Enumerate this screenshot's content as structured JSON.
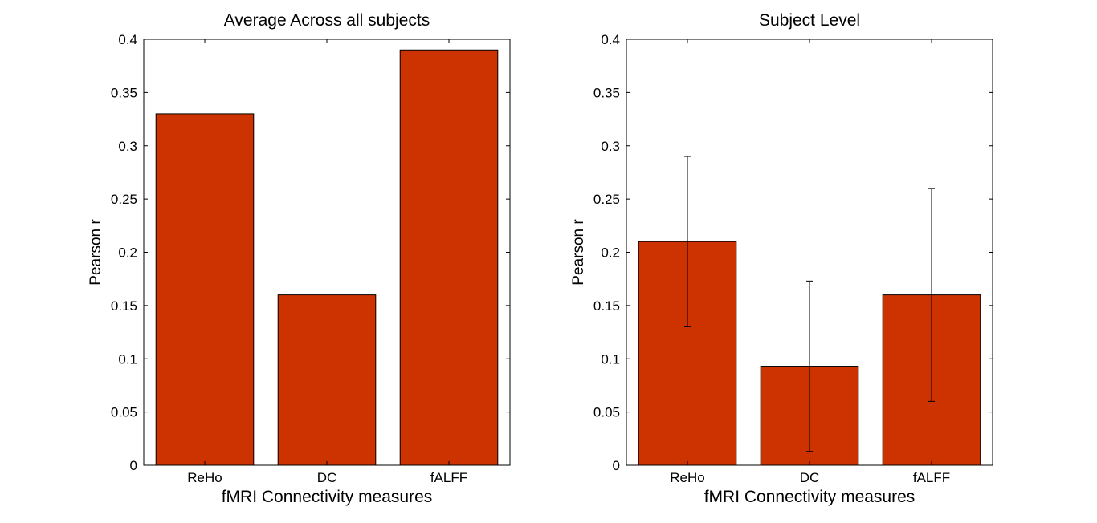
{
  "chart_data": [
    {
      "type": "bar",
      "title": "Average Across all subjects",
      "xlabel": "fMRI Connectivity measures",
      "ylabel": "Pearson r",
      "categories": [
        "ReHo",
        "DC",
        "fALFF"
      ],
      "values": [
        0.33,
        0.16,
        0.39
      ],
      "ylim": [
        0,
        0.4
      ],
      "yticks": [
        "0",
        "0.05",
        "0.1",
        "0.15",
        "0.2",
        "0.25",
        "0.3",
        "0.35",
        "0.4"
      ],
      "bar_color": "#cc3300",
      "grid": false
    },
    {
      "type": "bar",
      "title": "Subject Level",
      "xlabel": "fMRI Connectivity measures",
      "ylabel": "Pearson r",
      "categories": [
        "ReHo",
        "DC",
        "fALFF"
      ],
      "values": [
        0.21,
        0.093,
        0.16
      ],
      "error_low": [
        0.13,
        0.013,
        0.06
      ],
      "error_high": [
        0.29,
        0.173,
        0.26
      ],
      "ylim": [
        0,
        0.4
      ],
      "yticks": [
        "0",
        "0.05",
        "0.1",
        "0.15",
        "0.2",
        "0.25",
        "0.3",
        "0.35",
        "0.4"
      ],
      "bar_color": "#cc3300",
      "grid": false
    }
  ]
}
